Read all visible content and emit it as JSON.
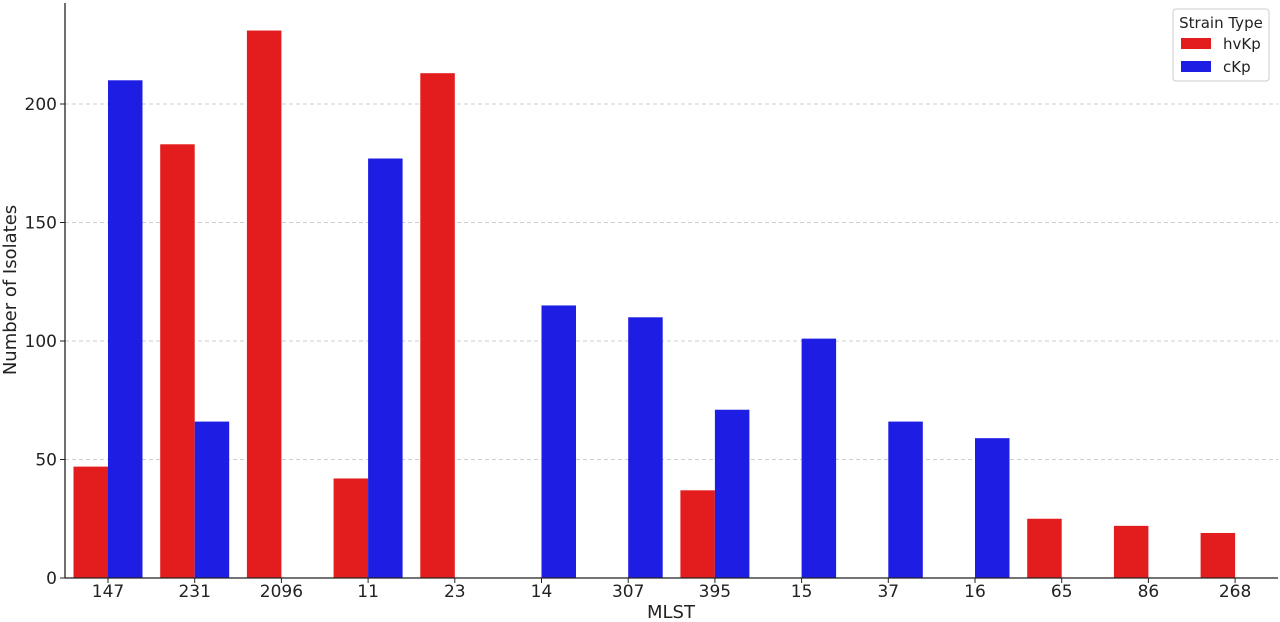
{
  "chart_data": {
    "type": "bar",
    "title": "",
    "xlabel": "MLST",
    "ylabel": "Number of Isolates",
    "categories": [
      "147",
      "231",
      "2096",
      "11",
      "23",
      "14",
      "307",
      "395",
      "15",
      "37",
      "16",
      "65",
      "86",
      "268"
    ],
    "series": [
      {
        "name": "hvKp",
        "color": "#e31d1d",
        "values": [
          47,
          183,
          231,
          42,
          213,
          0,
          0,
          37,
          0,
          0,
          0,
          25,
          22,
          19
        ]
      },
      {
        "name": "cKp",
        "color": "#1d1de3",
        "values": [
          210,
          66,
          0,
          177,
          0,
          115,
          110,
          71,
          101,
          66,
          59,
          0,
          0,
          0
        ]
      }
    ],
    "ylim": [
      0,
      243
    ],
    "yticks": [
      0,
      50,
      100,
      150,
      200
    ],
    "grid": "y-dashed",
    "legend": {
      "title": "Strain Type",
      "position": "top-right"
    }
  }
}
